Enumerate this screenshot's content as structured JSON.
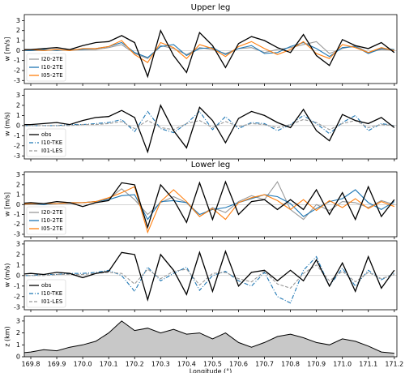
{
  "chart_data": [
    {
      "type": "line",
      "title": "Upper leg",
      "ylabel": "w [m/s]",
      "xlim": [
        169.775,
        171.21
      ],
      "ylim": [
        -3.3,
        3.6
      ],
      "yticks": [
        -3,
        -2,
        -1,
        0,
        1,
        2,
        3
      ],
      "zero_line": true,
      "legend": "lower left",
      "x": [
        169.75,
        169.8,
        169.85,
        169.9,
        169.95,
        170.0,
        170.05,
        170.1,
        170.15,
        170.2,
        170.25,
        170.3,
        170.35,
        170.4,
        170.45,
        170.5,
        170.55,
        170.6,
        170.65,
        170.7,
        170.75,
        170.8,
        170.85,
        170.9,
        170.95,
        171.0,
        171.05,
        171.1,
        171.15,
        171.2
      ],
      "series": [
        {
          "name": "obs",
          "color": "#000000",
          "dash": "solid",
          "in_legend": false,
          "values": [
            0.1,
            0.1,
            0.2,
            0.3,
            0.1,
            0.5,
            0.8,
            0.9,
            1.5,
            0.8,
            -2.6,
            2.0,
            -0.5,
            -2.2,
            1.8,
            0.5,
            -1.7,
            0.7,
            1.4,
            1.0,
            0.3,
            -0.2,
            1.6,
            -0.5,
            -1.5,
            1.1,
            0.5,
            0.2,
            0.8,
            -0.2
          ]
        },
        {
          "name": "I20-2TE",
          "color": "#999999",
          "dash": "solid",
          "values": [
            0,
            0,
            0,
            0.1,
            0,
            0.1,
            0.1,
            0.3,
            0.6,
            -0.3,
            -0.8,
            0.5,
            0.2,
            -0.4,
            0.3,
            0.1,
            -0.3,
            0.2,
            0.3,
            -0.2,
            0.1,
            0.3,
            0.6,
            0.9,
            -0.3,
            0.2,
            0.5,
            -0.2,
            0.1,
            0
          ]
        },
        {
          "name": "I10-2TE",
          "color": "#1f77b4",
          "dash": "solid",
          "values": [
            0,
            0,
            0.1,
            0,
            0.1,
            0.1,
            0.2,
            0.4,
            0.8,
            -0.2,
            -0.7,
            0.4,
            0.6,
            -0.5,
            0.2,
            0.3,
            -0.4,
            0.2,
            0.5,
            -0.3,
            -0.2,
            0.4,
            0.8,
            0.2,
            -0.6,
            0.3,
            0.4,
            -0.3,
            0.2,
            0.1
          ]
        },
        {
          "name": "I05-2TE",
          "color": "#ff7f0e",
          "dash": "solid",
          "values": [
            0,
            0.1,
            0,
            0.1,
            0,
            0.2,
            0.2,
            0.4,
            1.0,
            -0.4,
            -1.2,
            0.8,
            0.3,
            -0.8,
            0.6,
            0.2,
            -0.6,
            0.4,
            0.9,
            0.2,
            -0.4,
            0.1,
            0.9,
            -0.3,
            -0.8,
            0.6,
            0.3,
            -0.2,
            0.3,
            0
          ]
        }
      ]
    },
    {
      "type": "line",
      "ylabel": "w (m/s)",
      "xlim": [
        169.775,
        171.21
      ],
      "ylim": [
        -3.3,
        3.6
      ],
      "yticks": [
        -3,
        -2,
        -1,
        0,
        1,
        2,
        3
      ],
      "zero_line": true,
      "legend": "lower left",
      "x": [
        169.75,
        169.8,
        169.85,
        169.9,
        169.95,
        170.0,
        170.05,
        170.1,
        170.15,
        170.2,
        170.25,
        170.3,
        170.35,
        170.4,
        170.45,
        170.5,
        170.55,
        170.6,
        170.65,
        170.7,
        170.75,
        170.8,
        170.85,
        170.9,
        170.95,
        171.0,
        171.05,
        171.1,
        171.15,
        171.2
      ],
      "series": [
        {
          "name": "obs",
          "color": "#000000",
          "dash": "solid",
          "values": [
            0.1,
            0.1,
            0.2,
            0.3,
            0.1,
            0.5,
            0.8,
            0.9,
            1.5,
            0.8,
            -2.6,
            2.0,
            -0.5,
            -2.2,
            1.8,
            0.5,
            -1.7,
            0.7,
            1.4,
            1.0,
            0.3,
            -0.2,
            1.6,
            -0.5,
            -1.5,
            1.1,
            0.5,
            0.2,
            0.8,
            -0.2
          ]
        },
        {
          "name": "I10-TKE",
          "color": "#1f77b4",
          "dash": "dashdot",
          "values": [
            0,
            0,
            0,
            0,
            0.1,
            0.1,
            0.2,
            0.3,
            0.6,
            -0.6,
            1.4,
            -0.3,
            -0.7,
            0.2,
            1.4,
            -0.4,
            0.9,
            -0.3,
            0.3,
            0.2,
            -0.5,
            0.1,
            1.0,
            0.2,
            -0.8,
            0.3,
            1.0,
            -0.5,
            0.2,
            0
          ]
        },
        {
          "name": "I01-LES",
          "color": "#999999",
          "dash": "dashed",
          "values": [
            0,
            0,
            0,
            0,
            0,
            0.1,
            0.1,
            0.2,
            0.4,
            -0.3,
            0.5,
            -0.2,
            -0.4,
            0.2,
            0.5,
            -0.2,
            0.4,
            -0.1,
            0.2,
            0.1,
            -0.2,
            0.1,
            0.6,
            0.3,
            -0.4,
            0.2,
            0.5,
            -0.2,
            0.1,
            0
          ]
        }
      ]
    },
    {
      "type": "line",
      "title": "Lower leg",
      "ylabel": "w [m/s]",
      "xlim": [
        169.775,
        171.21
      ],
      "ylim": [
        -3.25,
        3.3
      ],
      "yticks": [
        -3,
        -2,
        -1,
        0,
        1,
        2,
        3
      ],
      "zero_line": true,
      "legend": "lower left",
      "x": [
        169.75,
        169.8,
        169.85,
        169.9,
        169.95,
        170.0,
        170.05,
        170.1,
        170.15,
        170.2,
        170.25,
        170.3,
        170.35,
        170.4,
        170.45,
        170.5,
        170.55,
        170.6,
        170.65,
        170.7,
        170.75,
        170.8,
        170.85,
        170.9,
        170.95,
        171.0,
        171.05,
        171.1,
        171.15,
        171.2
      ],
      "series": [
        {
          "name": "obs",
          "color": "#000000",
          "dash": "solid",
          "in_legend": false,
          "values": [
            0.1,
            0.2,
            0.1,
            0.3,
            0.2,
            -0.2,
            0.2,
            0.4,
            2.2,
            2.0,
            -2.3,
            2.0,
            0.5,
            -1.8,
            2.2,
            -1.5,
            2.3,
            -1.0,
            0.3,
            0.5,
            -0.5,
            0.5,
            -0.5,
            1.5,
            -1.0,
            1.2,
            -1.5,
            1.8,
            -1.2,
            0.5
          ]
        },
        {
          "name": "I20-2TE",
          "color": "#999999",
          "dash": "solid",
          "values": [
            0,
            0,
            0,
            0.1,
            0.1,
            0.2,
            0.3,
            0.6,
            1.6,
            0.5,
            -1.0,
            0.2,
            0.8,
            0.2,
            -1.2,
            -0.3,
            -0.8,
            0.3,
            0.9,
            0.5,
            2.3,
            -0.5,
            -1.5,
            0,
            -0.6,
            0.3,
            0.2,
            -0.3,
            0.4,
            0
          ]
        },
        {
          "name": "I10-2TE",
          "color": "#1f77b4",
          "dash": "solid",
          "values": [
            0,
            0.1,
            0,
            0.1,
            0.2,
            0.2,
            0.3,
            0.5,
            0.9,
            1.0,
            -1.5,
            0.3,
            0.4,
            0.2,
            -1.0,
            -0.5,
            -0.3,
            0.2,
            0.6,
            1.0,
            0.8,
            0.1,
            -1.2,
            -0.4,
            0.3,
            0.6,
            1.5,
            0.2,
            -0.5,
            0.3
          ]
        },
        {
          "name": "I05-2TE",
          "color": "#ff7f0e",
          "dash": "solid",
          "values": [
            0,
            0.1,
            0.1,
            0.1,
            0.2,
            0.2,
            0.3,
            0.7,
            1.2,
            1.8,
            -2.8,
            0.3,
            1.5,
            0.3,
            -1.2,
            -0.4,
            -1.5,
            0.2,
            0.7,
            1.0,
            0.4,
            -0.5,
            0.5,
            -0.6,
            0.4,
            -0.3,
            0.6,
            -0.4,
            0.3,
            -0.2
          ]
        }
      ]
    },
    {
      "type": "line",
      "ylabel": "w (m/s)",
      "xlim": [
        169.775,
        171.21
      ],
      "ylim": [
        -3.25,
        3.3
      ],
      "yticks": [
        -3,
        -2,
        -1,
        0,
        1,
        2,
        3
      ],
      "zero_line": true,
      "legend": "lower left",
      "x": [
        169.75,
        169.8,
        169.85,
        169.9,
        169.95,
        170.0,
        170.05,
        170.1,
        170.15,
        170.2,
        170.25,
        170.3,
        170.35,
        170.4,
        170.45,
        170.5,
        170.55,
        170.6,
        170.65,
        170.7,
        170.75,
        170.8,
        170.85,
        170.9,
        170.95,
        171.0,
        171.05,
        171.1,
        171.15,
        171.2
      ],
      "series": [
        {
          "name": "obs",
          "color": "#000000",
          "dash": "solid",
          "values": [
            0.1,
            0.2,
            0.1,
            0.3,
            0.2,
            -0.2,
            0.2,
            0.4,
            2.2,
            2.0,
            -2.3,
            2.0,
            0.5,
            -1.8,
            2.2,
            -1.5,
            2.3,
            -1.0,
            0.3,
            0.5,
            -0.5,
            0.5,
            -0.5,
            1.5,
            -1.0,
            1.2,
            -1.5,
            1.8,
            -1.2,
            0.5
          ]
        },
        {
          "name": "I10-TKE",
          "color": "#1f77b4",
          "dash": "dashdot",
          "values": [
            0,
            0,
            0.1,
            0.1,
            0.2,
            0.2,
            0.3,
            0.5,
            0,
            -1.5,
            0.8,
            -0.5,
            0.2,
            0.8,
            -1.4,
            0,
            0.4,
            -0.5,
            -1.0,
            0.3,
            -2.0,
            -2.6,
            0.5,
            1.8,
            -1.0,
            0.7,
            -1.0,
            0.5,
            -0.4,
            0.2
          ]
        },
        {
          "name": "I01-LES",
          "color": "#999999",
          "dash": "dashed",
          "values": [
            0,
            0,
            0,
            0.1,
            0.1,
            0.1,
            0.2,
            0.3,
            0.2,
            -0.8,
            0.6,
            -0.3,
            0.4,
            0.6,
            -0.9,
            0.2,
            0.3,
            -0.3,
            -0.6,
            0.4,
            -0.8,
            -1.2,
            0.2,
            1.0,
            -0.5,
            0.4,
            -0.6,
            0.3,
            -0.3,
            0.1
          ]
        }
      ]
    },
    {
      "type": "area",
      "ylabel": "z (km)",
      "xlabel": "Longitude (°)",
      "color": "#c8c8c8",
      "line_color": "#000000",
      "xlim": [
        169.775,
        171.21
      ],
      "ylim": [
        0,
        3.4
      ],
      "yticks": [
        0,
        1,
        2,
        3
      ],
      "xticks": [
        169.8,
        169.9,
        {
          "value": 170.0,
          "label": "170.0"
        },
        170.1,
        170.2,
        170.3,
        170.4,
        170.5,
        170.6,
        170.7,
        170.8,
        170.9,
        {
          "value": 171.0,
          "label": "171.0"
        },
        171.1,
        171.2
      ],
      "x": [
        169.75,
        169.8,
        169.85,
        169.9,
        169.95,
        170.0,
        170.05,
        170.1,
        170.15,
        170.2,
        170.25,
        170.3,
        170.35,
        170.4,
        170.45,
        170.5,
        170.55,
        170.6,
        170.65,
        170.7,
        170.75,
        170.8,
        170.85,
        170.9,
        170.95,
        171.0,
        171.05,
        171.1,
        171.15,
        171.2
      ],
      "values": [
        0.3,
        0.4,
        0.6,
        0.5,
        0.8,
        1.0,
        1.3,
        2.0,
        3.0,
        2.2,
        2.4,
        2.0,
        2.3,
        1.9,
        2.0,
        1.5,
        2.0,
        1.2,
        0.8,
        1.2,
        1.7,
        1.9,
        1.6,
        1.2,
        1.0,
        1.5,
        1.3,
        0.9,
        0.4,
        0.3
      ]
    }
  ]
}
